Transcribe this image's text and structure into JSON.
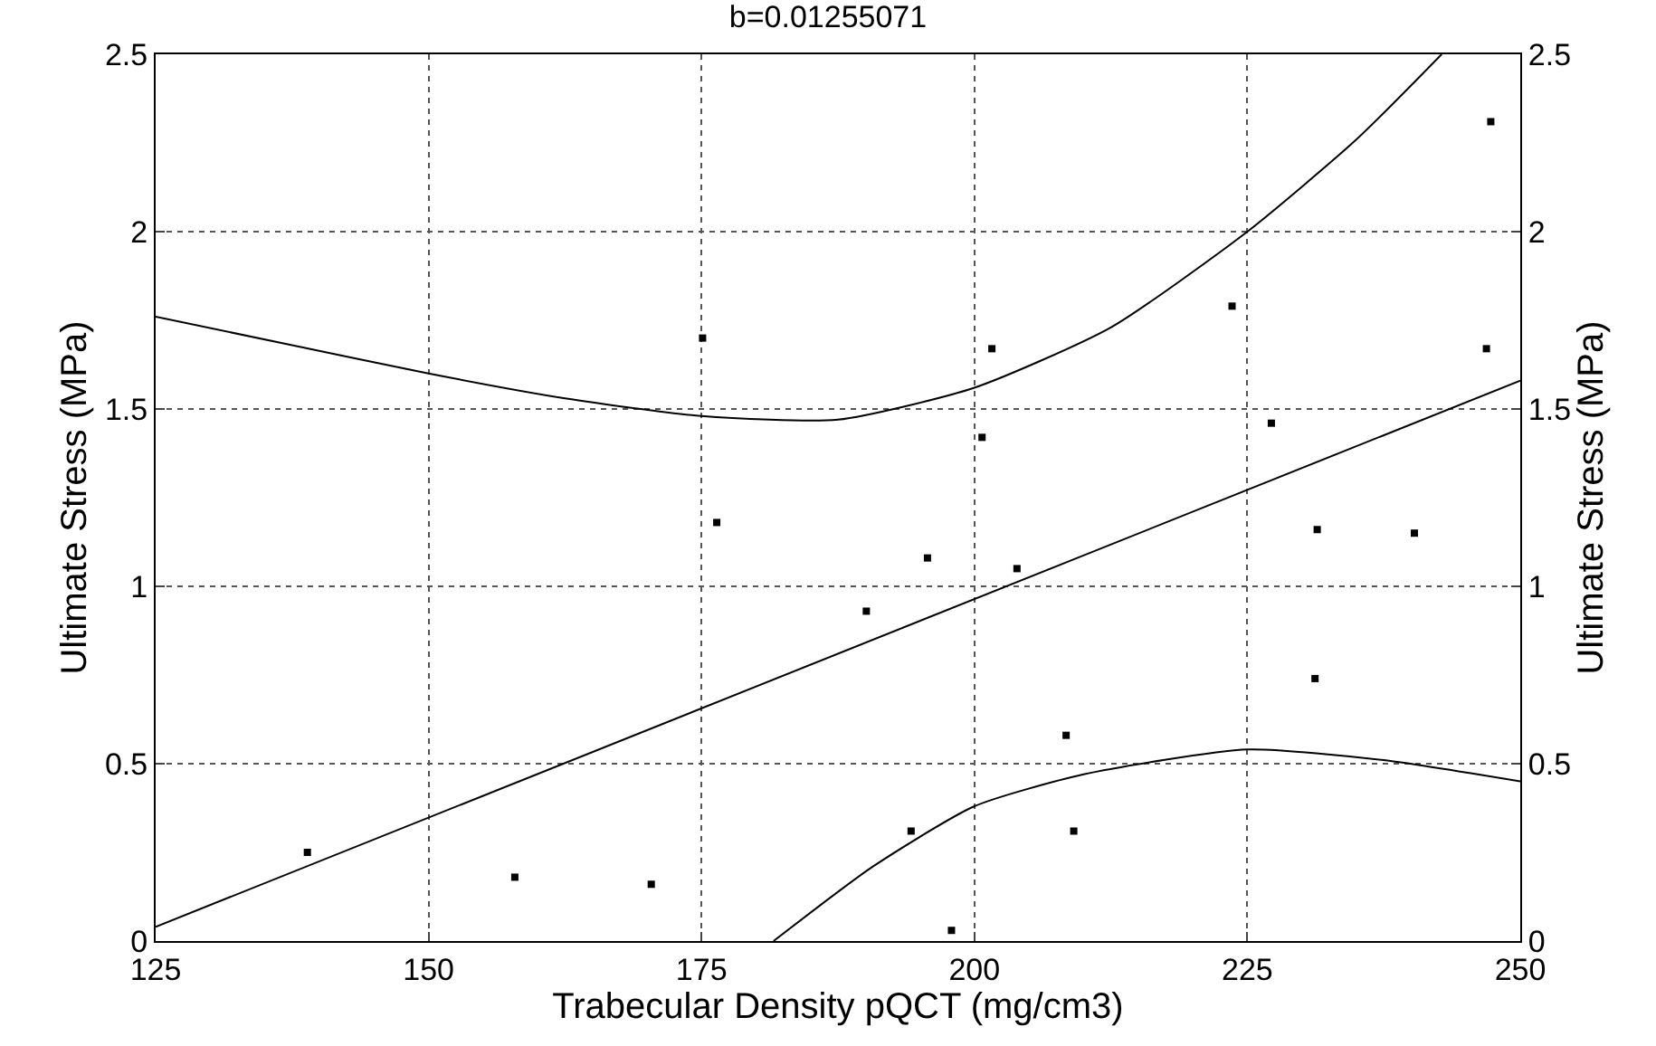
{
  "chart_data": {
    "type": "scatter",
    "title": "b=0.01255071",
    "xlabel": "Trabecular Density pQCT (mg/cm3)",
    "ylabel": "Ultimate Stress (MPa)",
    "y2label": "Ultimate Stress (MPa)",
    "xlim": [
      125,
      250
    ],
    "xticks": [
      125,
      150,
      175,
      200,
      225,
      250
    ],
    "ylim": [
      0,
      2.5
    ],
    "yticks": [
      0,
      0.5,
      1,
      1.5,
      2,
      2.5
    ],
    "y2lim": [
      0,
      2.5
    ],
    "y2ticks": [
      0,
      0.5,
      1,
      1.5,
      2,
      2.5
    ],
    "grid": true,
    "series": [
      {
        "marker": "square",
        "color": "#000000",
        "x": [
          138.9,
          157.9,
          170.4,
          175.1,
          176.4,
          190.1,
          195.7,
          203.9,
          194.2,
          197.9,
          208.4,
          209.1,
          231.2,
          231.4,
          240.3,
          200.7,
          201.6,
          223.6,
          227.2,
          246.9,
          247.3
        ],
        "values": [
          0.25,
          0.18,
          0.16,
          1.7,
          1.18,
          0.93,
          1.08,
          1.05,
          0.31,
          0.03,
          0.58,
          0.31,
          0.74,
          1.16,
          1.15,
          1.42,
          1.67,
          1.79,
          1.46,
          1.67,
          2.31
        ]
      },
      {
        "type": "line",
        "color": "#000000",
        "x": [
          125,
          250
        ],
        "values": [
          0.04,
          1.58
        ]
      },
      {
        "type": "line",
        "color": "#000000",
        "x": [
          125,
          137.5,
          150,
          162.5,
          175,
          187.5,
          200,
          212.5,
          225,
          235,
          242.8
        ],
        "values": [
          1.76,
          1.68,
          1.6,
          1.53,
          1.48,
          1.47,
          1.56,
          1.73,
          2.0,
          2.26,
          2.5
        ]
      },
      {
        "type": "line",
        "color": "#000000",
        "x": [
          181.6,
          190.7,
          200,
          210,
          225,
          237.5,
          250
        ],
        "values": [
          0,
          0.21,
          0.38,
          0.47,
          0.54,
          0.51,
          0.45
        ]
      }
    ]
  }
}
